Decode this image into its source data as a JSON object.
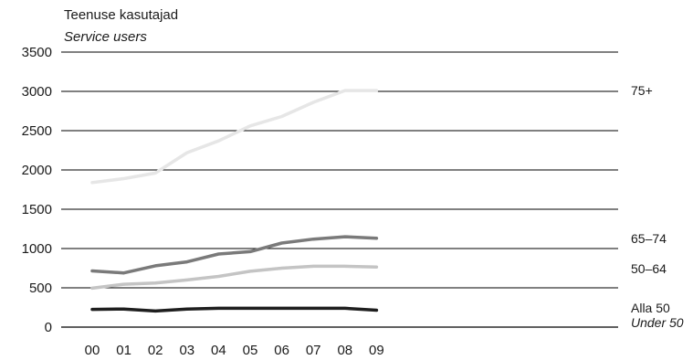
{
  "chart_data": {
    "type": "line",
    "ylabel": "Teenuse kasutajad",
    "ylabel_en": "Service users",
    "categories": [
      "00",
      "01",
      "02",
      "03",
      "04",
      "05",
      "06",
      "07",
      "08",
      "09"
    ],
    "ylim": [
      0,
      3500
    ],
    "yticks": [
      0,
      500,
      1000,
      1500,
      2000,
      2500,
      3000,
      3500
    ],
    "grid": true,
    "series": [
      {
        "name": "75+",
        "name_en": "",
        "color": "#e6e6e6",
        "values": [
          1840,
          1890,
          1960,
          2220,
          2370,
          2560,
          2680,
          2860,
          3010,
          3010
        ]
      },
      {
        "name": "65–74",
        "name_en": "",
        "color": "#7a7a7a",
        "values": [
          715,
          690,
          780,
          830,
          930,
          960,
          1070,
          1120,
          1150,
          1130
        ]
      },
      {
        "name": "50–64",
        "name_en": "",
        "color": "#c4c4c4",
        "values": [
          495,
          545,
          560,
          600,
          645,
          710,
          750,
          775,
          775,
          765
        ]
      },
      {
        "name": "Alla 50",
        "name_en": "Under 50",
        "color": "#1e1e1e",
        "values": [
          225,
          230,
          205,
          230,
          240,
          240,
          240,
          240,
          240,
          215
        ]
      }
    ]
  }
}
